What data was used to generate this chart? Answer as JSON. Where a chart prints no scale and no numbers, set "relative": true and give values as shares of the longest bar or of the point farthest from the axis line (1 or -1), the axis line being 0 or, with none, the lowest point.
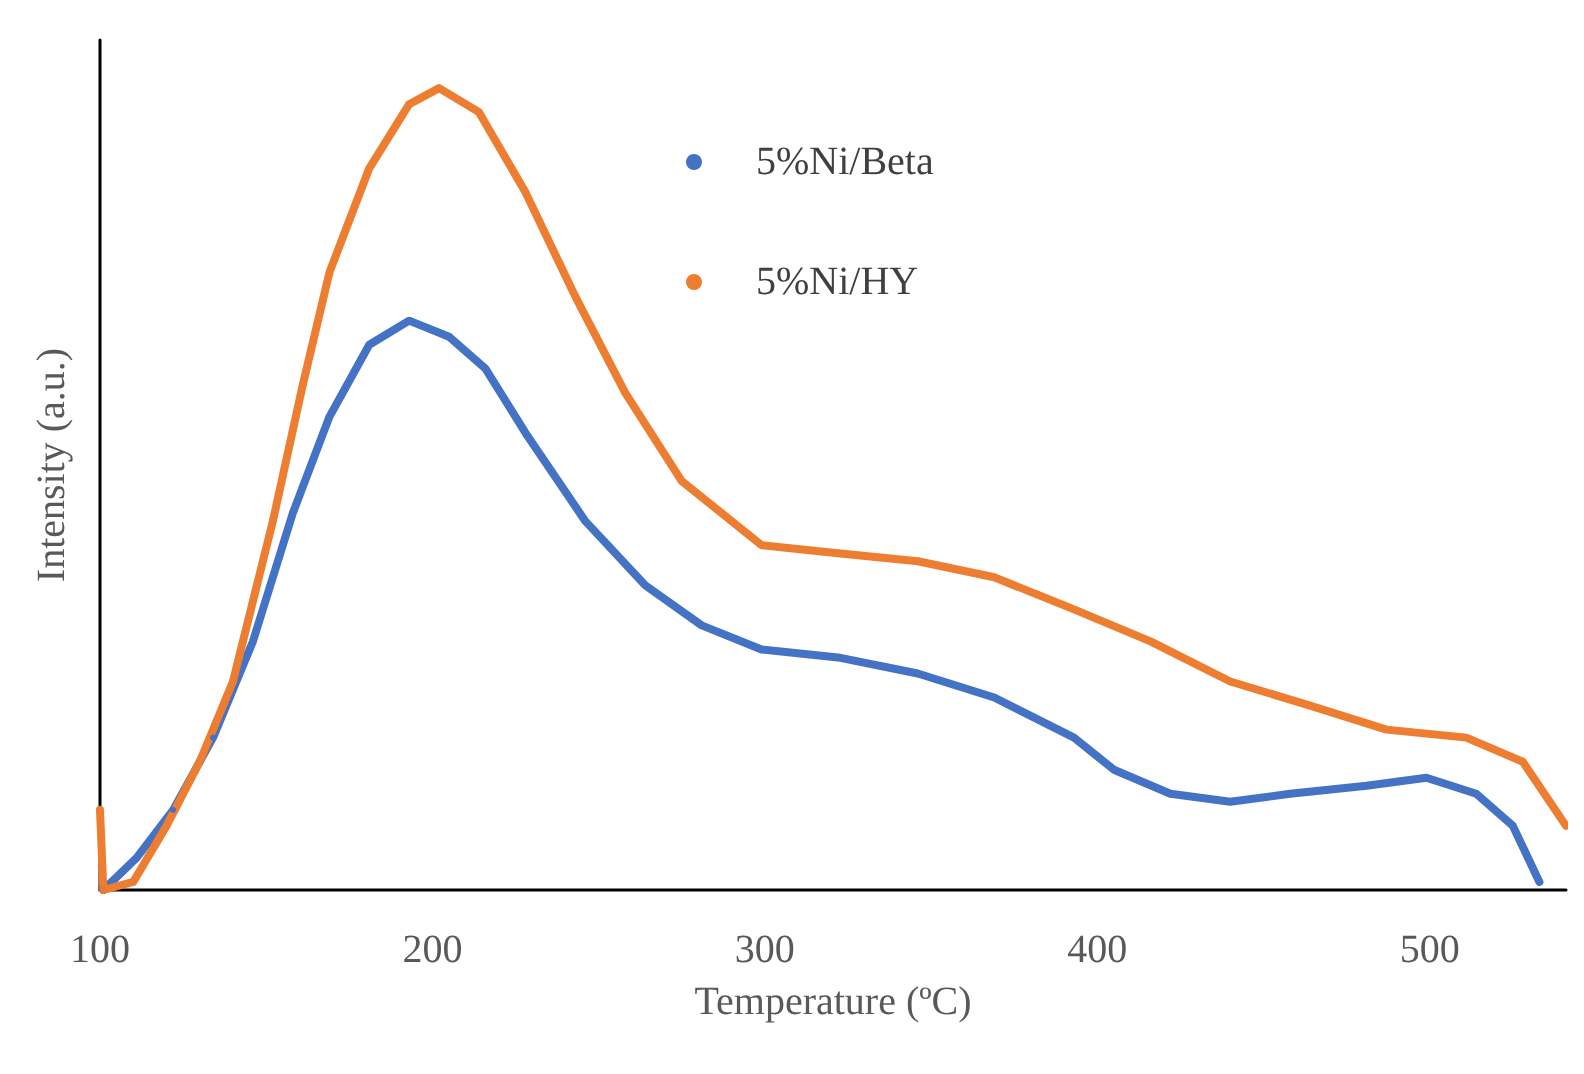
{
  "chart_data": {
    "type": "line",
    "xlabel": "Temperature (ºC)",
    "ylabel": "Intensity (a.u.)",
    "relative": true,
    "xlim": [
      100,
      541
    ],
    "xticks": [
      100,
      200,
      300,
      400,
      500
    ],
    "grid": false,
    "legend": "top",
    "marker": "circle",
    "line_style": "solid",
    "series": [
      {
        "name": "5%Ni/Beta",
        "color": "#4472c4",
        "x": [
          101,
          111,
          122,
          134,
          146,
          158,
          169,
          181,
          193,
          205,
          216,
          228,
          246,
          264,
          281,
          299,
          322,
          346,
          369,
          393,
          405,
          422,
          440,
          458,
          481,
          499,
          514,
          525,
          533
        ],
        "values": [
          0,
          0.04,
          0.1,
          0.19,
          0.31,
          0.47,
          0.59,
          0.68,
          0.71,
          0.69,
          0.65,
          0.57,
          0.46,
          0.38,
          0.33,
          0.3,
          0.29,
          0.27,
          0.24,
          0.19,
          0.15,
          0.12,
          0.11,
          0.12,
          0.13,
          0.14,
          0.12,
          0.08,
          0.01
        ]
      },
      {
        "name": "5%Ni/HY",
        "color": "#ed7d31",
        "x": [
          100,
          101,
          110,
          120,
          130,
          140,
          152,
          161,
          169,
          181,
          193,
          202,
          214,
          228,
          243,
          258,
          275,
          299,
          322,
          346,
          369,
          393,
          416,
          440,
          464,
          487,
          511,
          528,
          541
        ],
        "values": [
          0.1,
          0,
          0.01,
          0.08,
          0.16,
          0.26,
          0.46,
          0.63,
          0.77,
          0.9,
          0.98,
          1.0,
          0.97,
          0.87,
          0.74,
          0.62,
          0.51,
          0.43,
          0.42,
          0.41,
          0.39,
          0.35,
          0.31,
          0.26,
          0.23,
          0.2,
          0.19,
          0.16,
          0.08
        ]
      }
    ]
  }
}
